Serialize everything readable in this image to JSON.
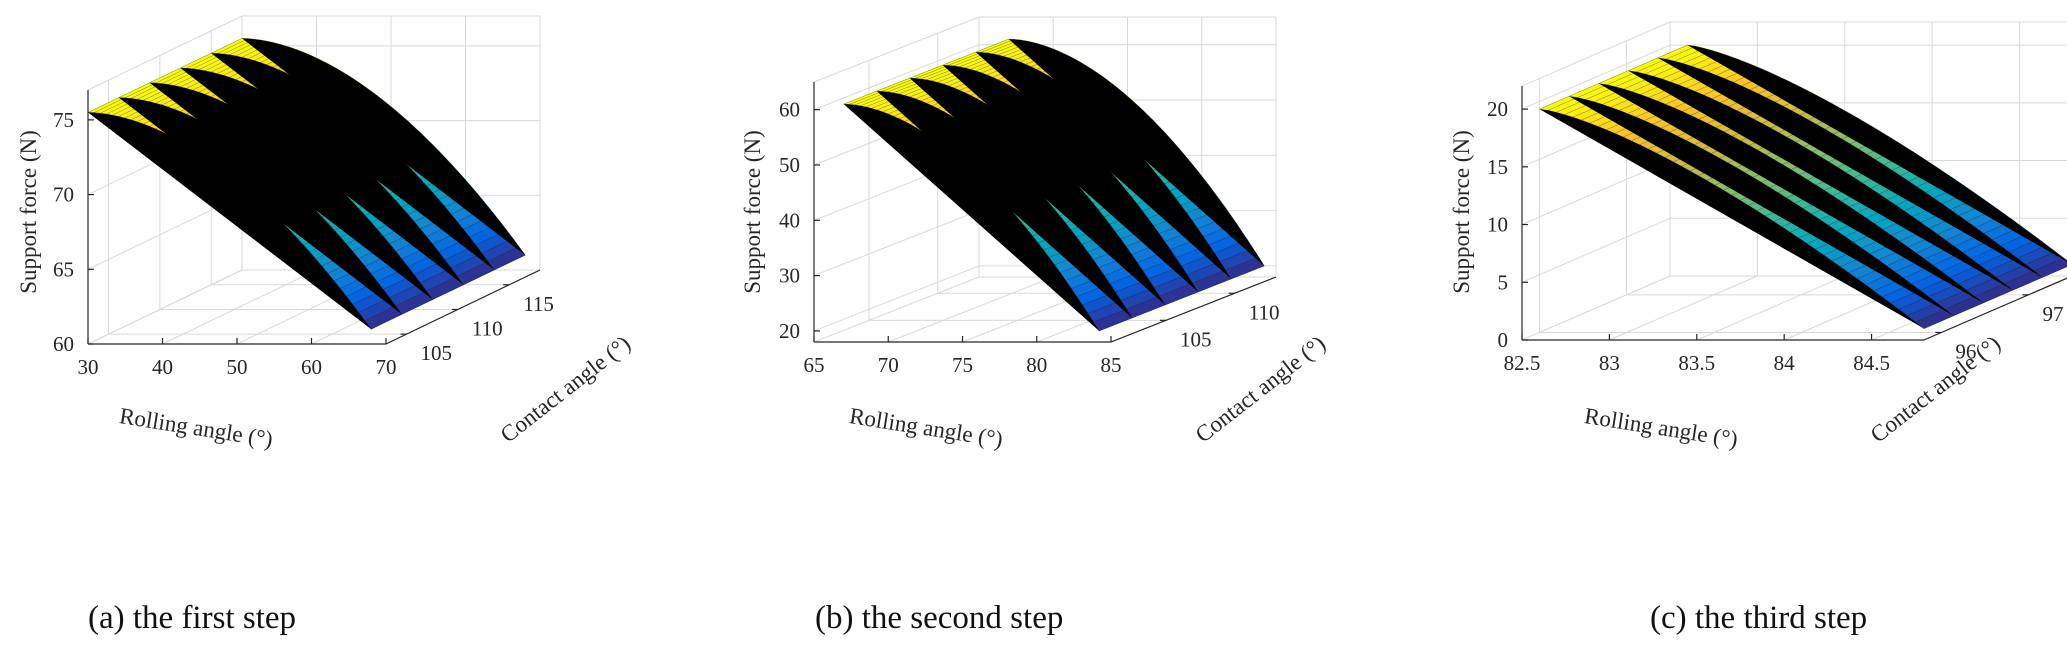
{
  "chart_data": [
    {
      "type": "surface",
      "caption": "(a) the first step",
      "xlabel": "Rolling angle (°)",
      "ylabel": "Contact angle (°)",
      "zlabel": "Support force (N)",
      "xlim": [
        30,
        70
      ],
      "ylim": [
        103,
        118
      ],
      "zlim": [
        60,
        77
      ],
      "xticks": [
        "30",
        "40",
        "50",
        "60",
        "70"
      ],
      "yticks": [
        "105",
        "110",
        "115"
      ],
      "zticks": [
        "60",
        "65",
        "70",
        "75"
      ],
      "surface": {
        "x_range": [
          30,
          68
        ],
        "y_range": [
          103,
          118
        ],
        "z_at_x_min": 75.5,
        "z_at_x_max": 61.0,
        "z_curve_exponent": 1.8
      },
      "grid": true,
      "colormap": "parula"
    },
    {
      "type": "surface",
      "caption": "(b) the second step",
      "xlabel": "Rolling angle (°)",
      "ylabel": "Contact angle (°)",
      "zlabel": "Support force (N)",
      "xlim": [
        65,
        85
      ],
      "ylim": [
        101,
        113
      ],
      "zlim": [
        18,
        65
      ],
      "xticks": [
        "65",
        "70",
        "75",
        "80",
        "85"
      ],
      "yticks": [
        "105",
        "110"
      ],
      "zticks": [
        "20",
        "30",
        "40",
        "50",
        "60"
      ],
      "surface": {
        "x_range": [
          67,
          84.2
        ],
        "y_range": [
          101,
          113
        ],
        "z_at_x_min": 61.0,
        "z_at_x_max": 20.0,
        "z_curve_exponent": 1.8
      },
      "grid": true,
      "colormap": "parula"
    },
    {
      "type": "surface",
      "caption": "(c) the third step",
      "xlabel": "Rolling angle (°)",
      "ylabel": "Contact angle (°)",
      "zlabel": "Support force (N)",
      "xlim": [
        82.5,
        84.8
      ],
      "ylim": [
        95.8,
        97.5
      ],
      "zlim": [
        0,
        22
      ],
      "xticks": [
        "82.5",
        "83",
        "83.5",
        "84",
        "84.5"
      ],
      "yticks": [
        "96",
        "97"
      ],
      "zticks": [
        "0",
        "5",
        "10",
        "15",
        "20"
      ],
      "surface": {
        "x_range": [
          82.6,
          84.8
        ],
        "y_range": [
          95.8,
          97.5
        ],
        "z_at_x_min": 20.0,
        "z_at_x_max": 1.0,
        "z_curve_exponent": 1.35
      },
      "grid": true,
      "colormap": "parula"
    }
  ]
}
